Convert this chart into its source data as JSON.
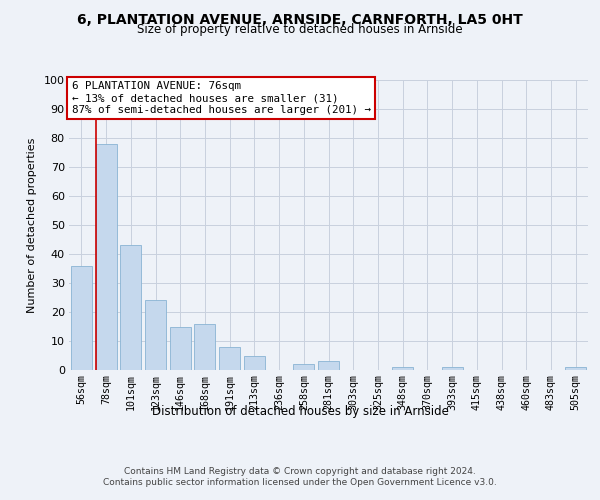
{
  "title1": "6, PLANTATION AVENUE, ARNSIDE, CARNFORTH, LA5 0HT",
  "title2": "Size of property relative to detached houses in Arnside",
  "xlabel": "Distribution of detached houses by size in Arnside",
  "ylabel": "Number of detached properties",
  "categories": [
    "56sqm",
    "78sqm",
    "101sqm",
    "123sqm",
    "146sqm",
    "168sqm",
    "191sqm",
    "213sqm",
    "236sqm",
    "258sqm",
    "281sqm",
    "303sqm",
    "325sqm",
    "348sqm",
    "370sqm",
    "393sqm",
    "415sqm",
    "438sqm",
    "460sqm",
    "483sqm",
    "505sqm"
  ],
  "values": [
    36,
    78,
    43,
    24,
    15,
    16,
    8,
    5,
    0,
    2,
    3,
    0,
    0,
    1,
    0,
    1,
    0,
    0,
    0,
    0,
    1
  ],
  "bar_color": "#c5d8ed",
  "bar_edge_color": "#8ab4d4",
  "vline_color": "#cc0000",
  "annotation_text": "6 PLANTATION AVENUE: 76sqm\n← 13% of detached houses are smaller (31)\n87% of semi-detached houses are larger (201) →",
  "annotation_box_color": "#ffffff",
  "annotation_box_edge_color": "#cc0000",
  "ylim": [
    0,
    100
  ],
  "yticks": [
    0,
    10,
    20,
    30,
    40,
    50,
    60,
    70,
    80,
    90,
    100
  ],
  "footnote": "Contains HM Land Registry data © Crown copyright and database right 2024.\nContains public sector information licensed under the Open Government Licence v3.0.",
  "bg_color": "#eef2f8",
  "plot_bg_color": "#eef2f8"
}
